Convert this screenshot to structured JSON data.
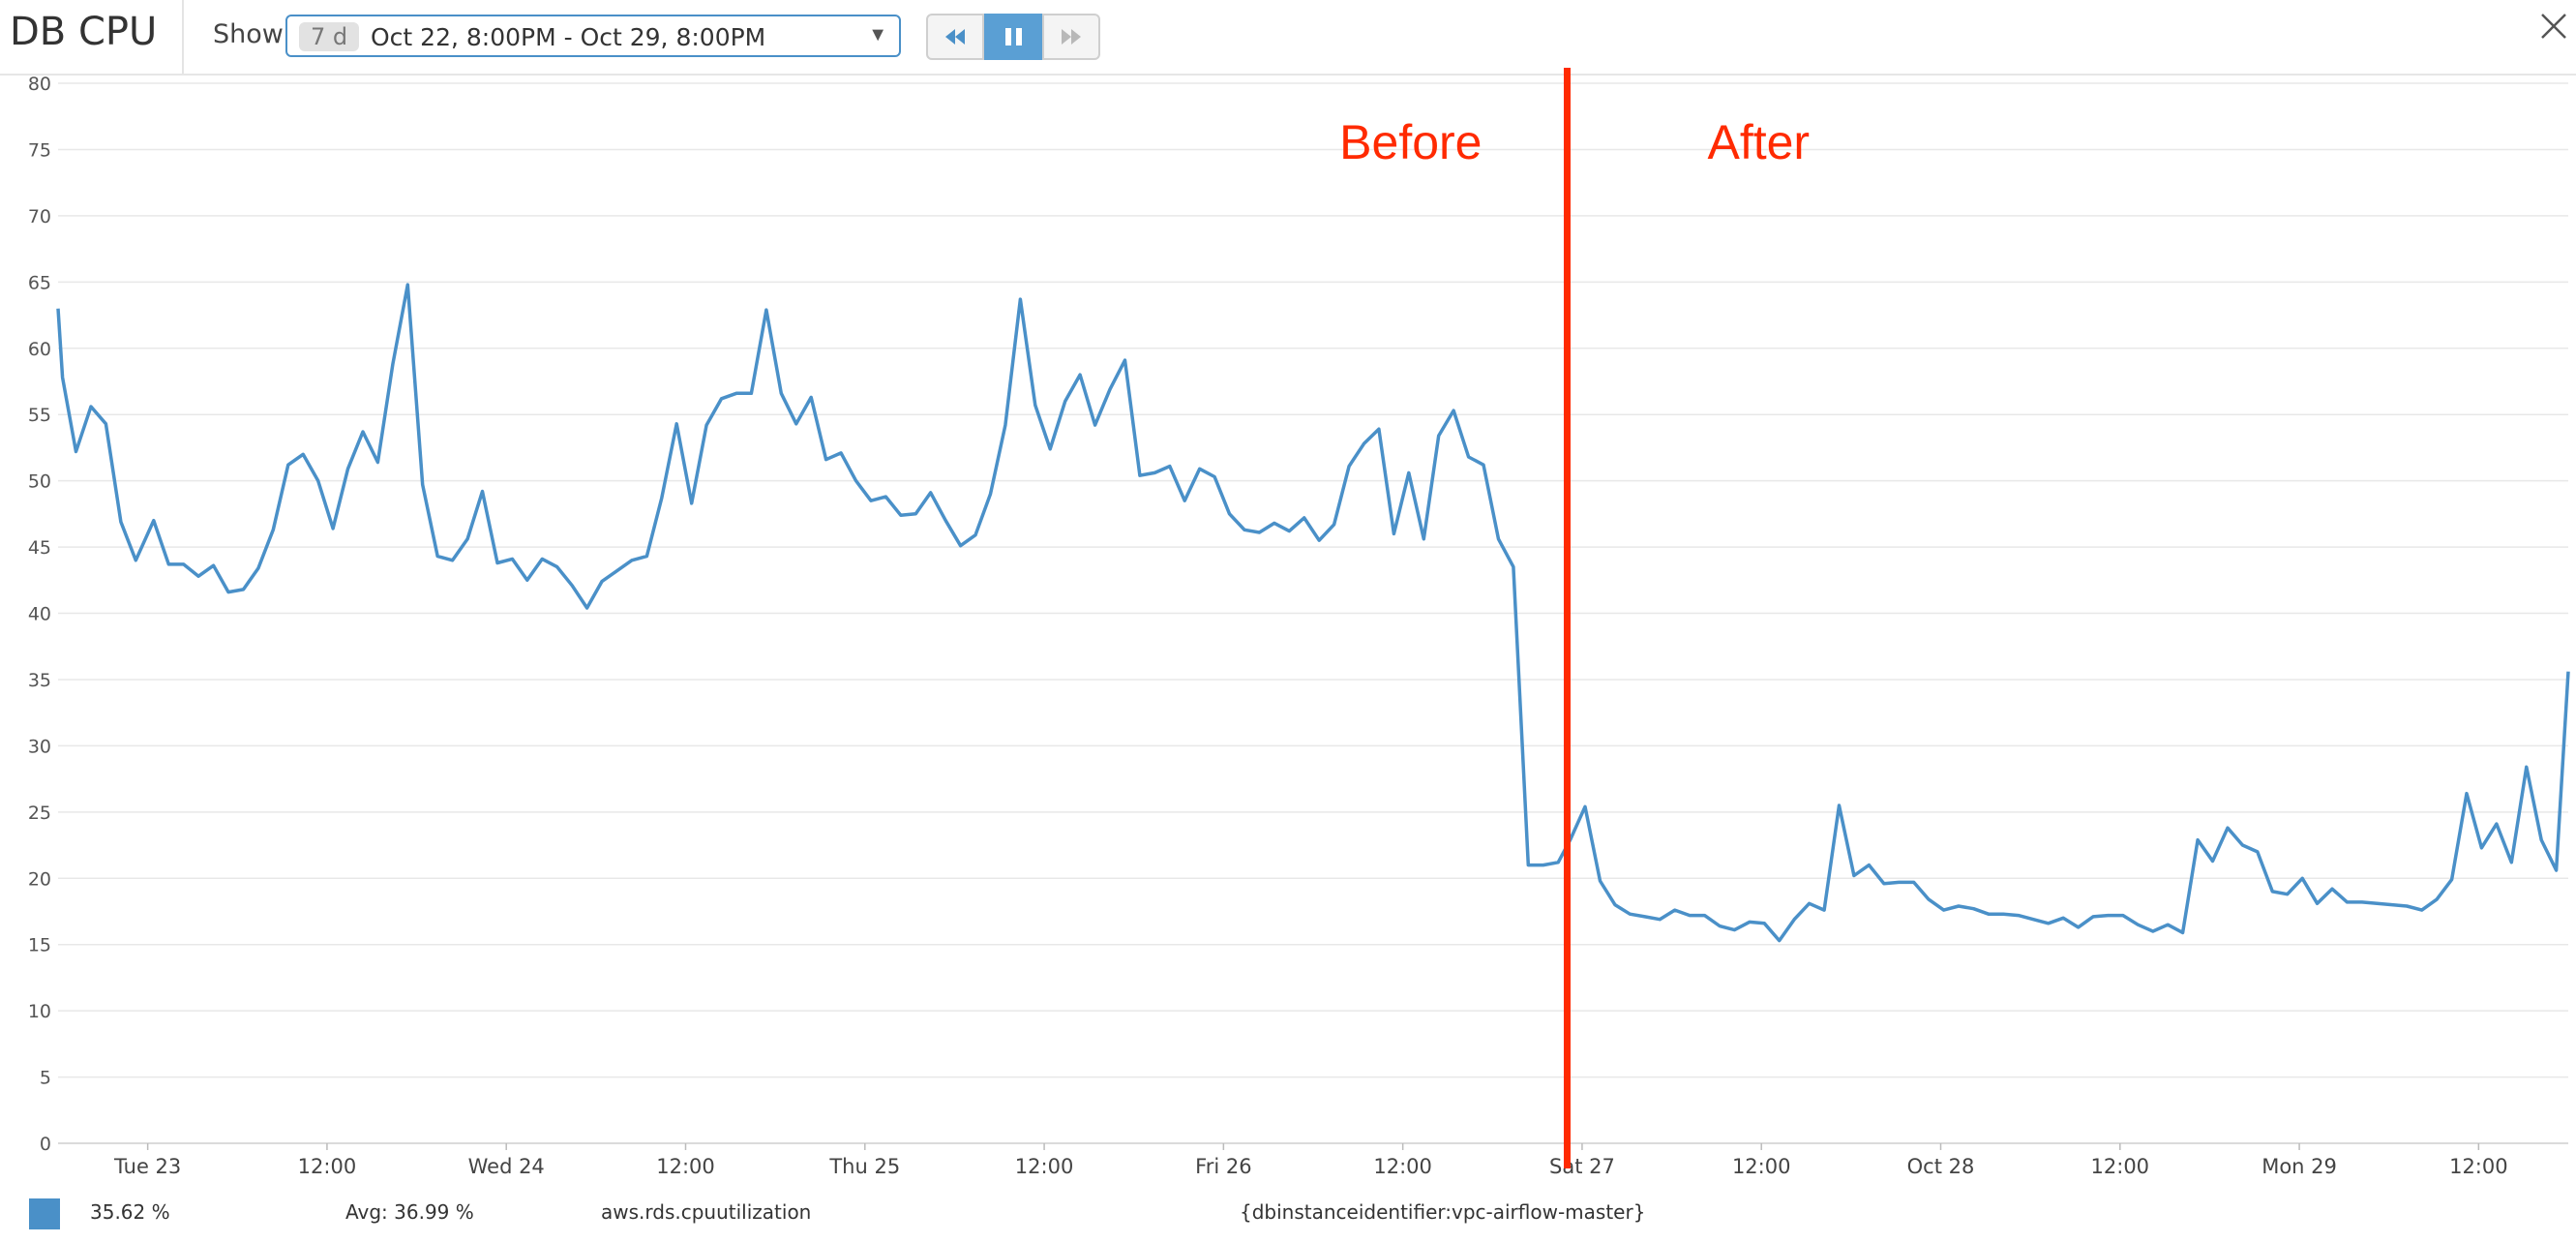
{
  "header": {
    "title": "DB CPU",
    "show_label": "Show",
    "range_badge": "7 d",
    "range_text": "Oct 22, 8:00PM - Oct 29, 8:00PM",
    "rewind_icon": "rewind-icon",
    "pause_icon": "pause-icon",
    "forward_icon": "fast-forward-icon",
    "close_icon": "close-icon"
  },
  "legend": {
    "current_value": "35.62 %",
    "avg": "Avg: 36.99 %",
    "metric": "aws.rds.cpuutilization",
    "tags": "{dbinstanceidentifier:vpc-airflow-master}",
    "color": "#4a90c8"
  },
  "annotation": {
    "before": "Before",
    "after": "After",
    "color": "#ff2a00",
    "x_hours": 101
  },
  "chart_data": {
    "type": "line",
    "title": "DB CPU",
    "xlabel": "",
    "ylabel": "",
    "x_range_hours": [
      0,
      168
    ],
    "ylim": [
      0,
      80
    ],
    "y_ticks": [
      0,
      5,
      10,
      15,
      20,
      25,
      30,
      35,
      40,
      45,
      50,
      55,
      60,
      65,
      70,
      75,
      80
    ],
    "x_ticks": [
      {
        "h": 6,
        "label": "Tue 23"
      },
      {
        "h": 18,
        "label": "12:00"
      },
      {
        "h": 30,
        "label": "Wed 24"
      },
      {
        "h": 42,
        "label": "12:00"
      },
      {
        "h": 54,
        "label": "Thu 25"
      },
      {
        "h": 66,
        "label": "12:00"
      },
      {
        "h": 78,
        "label": "Fri 26"
      },
      {
        "h": 90,
        "label": "12:00"
      },
      {
        "h": 102,
        "label": "Sat 27"
      },
      {
        "h": 114,
        "label": "12:00"
      },
      {
        "h": 126,
        "label": "Oct 28"
      },
      {
        "h": 138,
        "label": "12:00"
      },
      {
        "h": 150,
        "label": "Mon 29"
      },
      {
        "h": 162,
        "label": "12:00"
      }
    ],
    "grid": true,
    "series": [
      {
        "color": "#4a90c8",
        "x": [
          0,
          0.3,
          1.2,
          2.2,
          3.2,
          4.2,
          5.2,
          6.4,
          7.4,
          8.4,
          9.4,
          10.4,
          11.4,
          12.4,
          13.4,
          14.4,
          15.4,
          16.4,
          17.4,
          18.4,
          19.4,
          20.4,
          21.4,
          22.4,
          23.4,
          24.4,
          25.4,
          26.4,
          27.4,
          28.4,
          29.4,
          30.4,
          31.4,
          32.4,
          33.4,
          34.4,
          35.4,
          36.4,
          37.4,
          38.4,
          39.4,
          40.4,
          41.4,
          42.4,
          43.4,
          44.4,
          45.4,
          46.4,
          47.4,
          48.4,
          49.4,
          50.4,
          51.4,
          52.4,
          53.4,
          54.4,
          55.4,
          56.4,
          57.4,
          58.4,
          59.4,
          60.4,
          61.4,
          62.4,
          63.4,
          64.4,
          65.4,
          66.4,
          67.4,
          68.4,
          69.4,
          70.4,
          71.4,
          72.4,
          73.4,
          74.4,
          75.4,
          76.4,
          77.4,
          78.4,
          79.4,
          80.4,
          81.4,
          82.4,
          83.4,
          84.4,
          85.4,
          86.4,
          87.4,
          88.4,
          89.4,
          90.4,
          91.4,
          92.4,
          93.4,
          94.4,
          95.4,
          96.4,
          97.4,
          98.4,
          99.4,
          100.4,
          101.2,
          102.2,
          103.2,
          104.2,
          105.2,
          106.2,
          107.2,
          108.2,
          109.2,
          110.2,
          111.2,
          112.2,
          113.2,
          114.2,
          115.2,
          116.2,
          117.2,
          118.2,
          119.2,
          120.2,
          121.2,
          122.2,
          123.2,
          124.2,
          125.2,
          126.2,
          127.2,
          128.2,
          129.2,
          130.2,
          131.2,
          132.2,
          133.2,
          134.2,
          135.2,
          136.2,
          137.2,
          138.2,
          139.2,
          140.2,
          141.2,
          142.2,
          143.2,
          144.2,
          145.2,
          146.2,
          147.2,
          148.2,
          149.2,
          150.2,
          151.2,
          152.2,
          153.2,
          154.2,
          155.2,
          156.2,
          157.2,
          158.2,
          159.2,
          160.2,
          161.2,
          162.2,
          163.2,
          164.2,
          165.2,
          166.2,
          167.2,
          168
        ],
        "values": [
          63,
          57.8,
          52.2,
          55.6,
          54.3,
          46.9,
          44,
          47,
          43.7,
          43.7,
          42.8,
          43.6,
          41.6,
          41.8,
          43.4,
          46.3,
          51.2,
          52,
          50,
          46.4,
          50.9,
          53.7,
          51.4,
          58.8,
          64.8,
          49.7,
          44.3,
          44,
          45.6,
          49.2,
          43.8,
          44.1,
          42.5,
          44.1,
          43.5,
          42.1,
          40.4,
          42.4,
          43.2,
          44,
          44.3,
          48.7,
          54.3,
          48.3,
          54.2,
          56.2,
          56.6,
          56.6,
          62.9,
          56.6,
          54.3,
          56.3,
          51.6,
          52.1,
          50,
          48.5,
          48.8,
          47.4,
          47.5,
          49.1,
          47,
          45.1,
          45.9,
          49,
          54.2,
          63.7,
          55.7,
          52.4,
          56,
          58,
          54.2,
          56.9,
          59.1,
          50.4,
          50.6,
          51.1,
          48.5,
          50.9,
          50.3,
          47.5,
          46.3,
          46.1,
          46.8,
          46.2,
          47.2,
          45.5,
          46.7,
          51.1,
          52.8,
          53.9,
          46,
          50.6,
          45.6,
          53.4,
          55.3,
          51.8,
          51.2,
          45.6,
          43.5,
          21,
          21,
          21.2,
          22.9,
          25.4,
          19.8,
          18,
          17.3,
          17.1,
          16.9,
          17.6,
          17.2,
          17.2,
          16.4,
          16.1,
          16.7,
          16.6,
          15.3,
          16.9,
          18.1,
          17.6,
          25.5,
          20.2,
          21,
          19.6,
          19.7,
          19.7,
          18.4,
          17.6,
          17.9,
          17.7,
          17.3,
          17.3,
          17.2,
          16.9,
          16.6,
          17,
          16.3,
          17.1,
          17.2,
          17.2,
          16.5,
          16,
          16.5,
          15.9,
          22.9,
          21.3,
          23.8,
          22.5,
          22,
          19,
          18.8,
          20,
          18.1,
          19.2,
          18.2,
          18.2,
          18.1,
          18,
          17.9,
          17.6,
          18.4,
          19.9,
          26.4,
          22.3,
          24.1,
          21.2,
          28.4,
          22.9,
          20.6,
          35.6
        ]
      }
    ]
  }
}
